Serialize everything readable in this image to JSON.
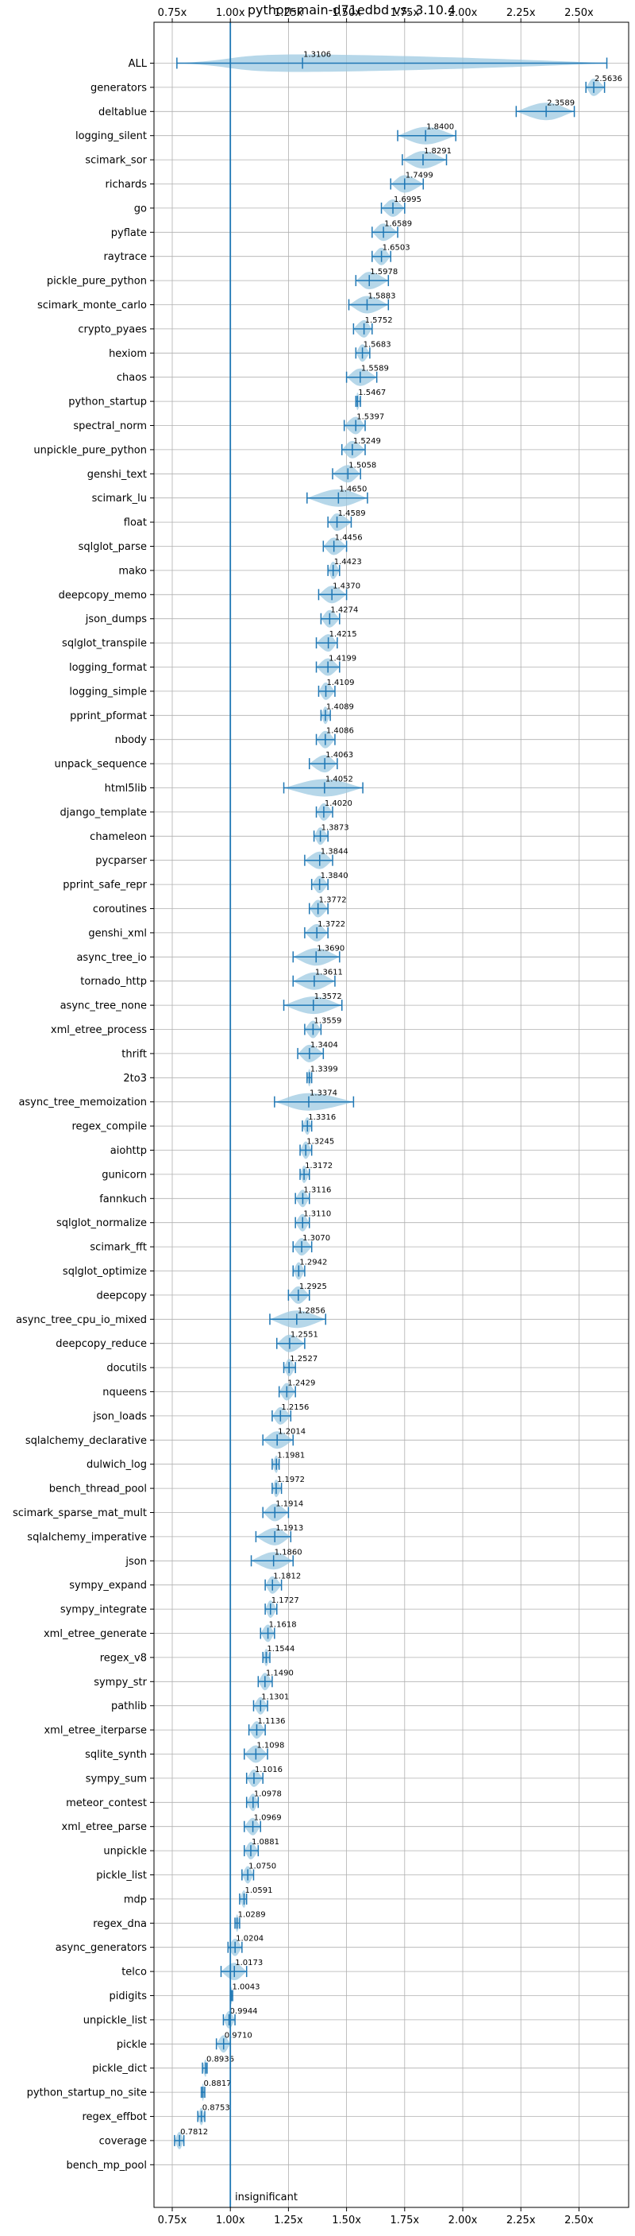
{
  "chart_data": {
    "type": "violin",
    "title": "python-main-d71edbd vs. 3.10.4",
    "xlim": [
      0.72,
      2.65
    ],
    "xticks": [
      "0.75x",
      "1.00x",
      "1.25x",
      "1.50x",
      "1.75x",
      "2.00x",
      "2.25x",
      "2.50x"
    ],
    "xtick_values": [
      0.75,
      1.0,
      1.25,
      1.5,
      1.75,
      2.0,
      2.25,
      2.5
    ],
    "grid": true,
    "reference_line": 1.0,
    "reference_color": "#1f77b4",
    "violin_color": "#9ecae1",
    "line_color": "#1f77b4",
    "annotation": "insignificant",
    "benchmarks": [
      {
        "name": "ALL",
        "value": 1.3106,
        "label": "1.3106",
        "min": 0.77,
        "max": 2.62
      },
      {
        "name": "generators",
        "value": 2.5636,
        "label": "2.5636",
        "min": 2.53,
        "max": 2.61
      },
      {
        "name": "deltablue",
        "value": 2.3589,
        "label": "2.3589",
        "min": 2.23,
        "max": 2.48
      },
      {
        "name": "logging_silent",
        "value": 1.84,
        "label": "1.8400",
        "min": 1.72,
        "max": 1.97
      },
      {
        "name": "scimark_sor",
        "value": 1.8291,
        "label": "1.8291",
        "min": 1.74,
        "max": 1.93
      },
      {
        "name": "richards",
        "value": 1.7499,
        "label": "1.7499",
        "min": 1.69,
        "max": 1.83
      },
      {
        "name": "go",
        "value": 1.6995,
        "label": "1.6995",
        "min": 1.65,
        "max": 1.75
      },
      {
        "name": "pyflate",
        "value": 1.6589,
        "label": "1.6589",
        "min": 1.61,
        "max": 1.72
      },
      {
        "name": "raytrace",
        "value": 1.6503,
        "label": "1.6503",
        "min": 1.61,
        "max": 1.69
      },
      {
        "name": "pickle_pure_python",
        "value": 1.5978,
        "label": "1.5978",
        "min": 1.54,
        "max": 1.68
      },
      {
        "name": "scimark_monte_carlo",
        "value": 1.5883,
        "label": "1.5883",
        "min": 1.51,
        "max": 1.68
      },
      {
        "name": "crypto_pyaes",
        "value": 1.5752,
        "label": "1.5752",
        "min": 1.53,
        "max": 1.61
      },
      {
        "name": "hexiom",
        "value": 1.5683,
        "label": "1.5683",
        "min": 1.54,
        "max": 1.6
      },
      {
        "name": "chaos",
        "value": 1.5589,
        "label": "1.5589",
        "min": 1.5,
        "max": 1.63
      },
      {
        "name": "python_startup",
        "value": 1.5467,
        "label": "1.5467",
        "min": 1.54,
        "max": 1.56
      },
      {
        "name": "spectral_norm",
        "value": 1.5397,
        "label": "1.5397",
        "min": 1.49,
        "max": 1.58
      },
      {
        "name": "unpickle_pure_python",
        "value": 1.5249,
        "label": "1.5249",
        "min": 1.48,
        "max": 1.58
      },
      {
        "name": "genshi_text",
        "value": 1.5058,
        "label": "1.5058",
        "min": 1.44,
        "max": 1.56
      },
      {
        "name": "scimark_lu",
        "value": 1.465,
        "label": "1.4650",
        "min": 1.33,
        "max": 1.59
      },
      {
        "name": "float",
        "value": 1.4589,
        "label": "1.4589",
        "min": 1.42,
        "max": 1.52
      },
      {
        "name": "sqlglot_parse",
        "value": 1.4456,
        "label": "1.4456",
        "min": 1.4,
        "max": 1.5
      },
      {
        "name": "mako",
        "value": 1.4423,
        "label": "1.4423",
        "min": 1.42,
        "max": 1.47
      },
      {
        "name": "deepcopy_memo",
        "value": 1.437,
        "label": "1.4370",
        "min": 1.38,
        "max": 1.5
      },
      {
        "name": "json_dumps",
        "value": 1.4274,
        "label": "1.4274",
        "min": 1.39,
        "max": 1.47
      },
      {
        "name": "sqlglot_transpile",
        "value": 1.4215,
        "label": "1.4215",
        "min": 1.37,
        "max": 1.46
      },
      {
        "name": "logging_format",
        "value": 1.4199,
        "label": "1.4199",
        "min": 1.37,
        "max": 1.47
      },
      {
        "name": "logging_simple",
        "value": 1.4109,
        "label": "1.4109",
        "min": 1.38,
        "max": 1.45
      },
      {
        "name": "pprint_pformat",
        "value": 1.4089,
        "label": "1.4089",
        "min": 1.39,
        "max": 1.43
      },
      {
        "name": "nbody",
        "value": 1.4086,
        "label": "1.4086",
        "min": 1.37,
        "max": 1.45
      },
      {
        "name": "unpack_sequence",
        "value": 1.4063,
        "label": "1.4063",
        "min": 1.34,
        "max": 1.46
      },
      {
        "name": "html5lib",
        "value": 1.4052,
        "label": "1.4052",
        "min": 1.23,
        "max": 1.57
      },
      {
        "name": "django_template",
        "value": 1.402,
        "label": "1.4020",
        "min": 1.37,
        "max": 1.44
      },
      {
        "name": "chameleon",
        "value": 1.3873,
        "label": "1.3873",
        "min": 1.36,
        "max": 1.42
      },
      {
        "name": "pycparser",
        "value": 1.3844,
        "label": "1.3844",
        "min": 1.32,
        "max": 1.44
      },
      {
        "name": "pprint_safe_repr",
        "value": 1.384,
        "label": "1.3840",
        "min": 1.35,
        "max": 1.42
      },
      {
        "name": "coroutines",
        "value": 1.3772,
        "label": "1.3772",
        "min": 1.34,
        "max": 1.42
      },
      {
        "name": "genshi_xml",
        "value": 1.3722,
        "label": "1.3722",
        "min": 1.32,
        "max": 1.42
      },
      {
        "name": "async_tree_io",
        "value": 1.369,
        "label": "1.3690",
        "min": 1.27,
        "max": 1.47
      },
      {
        "name": "tornado_http",
        "value": 1.3611,
        "label": "1.3611",
        "min": 1.27,
        "max": 1.45
      },
      {
        "name": "async_tree_none",
        "value": 1.3572,
        "label": "1.3572",
        "min": 1.23,
        "max": 1.48
      },
      {
        "name": "xml_etree_process",
        "value": 1.3559,
        "label": "1.3559",
        "min": 1.32,
        "max": 1.39
      },
      {
        "name": "thrift",
        "value": 1.3404,
        "label": "1.3404",
        "min": 1.29,
        "max": 1.4
      },
      {
        "name": "2to3",
        "value": 1.3399,
        "label": "1.3399",
        "min": 1.33,
        "max": 1.35
      },
      {
        "name": "async_tree_memoization",
        "value": 1.3374,
        "label": "1.3374",
        "min": 1.19,
        "max": 1.53
      },
      {
        "name": "regex_compile",
        "value": 1.3316,
        "label": "1.3316",
        "min": 1.31,
        "max": 1.35
      },
      {
        "name": "aiohttp",
        "value": 1.3245,
        "label": "1.3245",
        "min": 1.3,
        "max": 1.35
      },
      {
        "name": "gunicorn",
        "value": 1.3172,
        "label": "1.3172",
        "min": 1.3,
        "max": 1.34
      },
      {
        "name": "fannkuch",
        "value": 1.3116,
        "label": "1.3116",
        "min": 1.28,
        "max": 1.34
      },
      {
        "name": "sqlglot_normalize",
        "value": 1.311,
        "label": "1.3110",
        "min": 1.28,
        "max": 1.34
      },
      {
        "name": "scimark_fft",
        "value": 1.307,
        "label": "1.3070",
        "min": 1.27,
        "max": 1.35
      },
      {
        "name": "sqlglot_optimize",
        "value": 1.2942,
        "label": "1.2942",
        "min": 1.27,
        "max": 1.32
      },
      {
        "name": "deepcopy",
        "value": 1.2925,
        "label": "1.2925",
        "min": 1.25,
        "max": 1.34
      },
      {
        "name": "async_tree_cpu_io_mixed",
        "value": 1.2856,
        "label": "1.2856",
        "min": 1.17,
        "max": 1.41
      },
      {
        "name": "deepcopy_reduce",
        "value": 1.2551,
        "label": "1.2551",
        "min": 1.2,
        "max": 1.32
      },
      {
        "name": "docutils",
        "value": 1.2527,
        "label": "1.2527",
        "min": 1.23,
        "max": 1.28
      },
      {
        "name": "nqueens",
        "value": 1.2429,
        "label": "1.2429",
        "min": 1.21,
        "max": 1.28
      },
      {
        "name": "json_loads",
        "value": 1.2156,
        "label": "1.2156",
        "min": 1.18,
        "max": 1.26
      },
      {
        "name": "sqlalchemy_declarative",
        "value": 1.2014,
        "label": "1.2014",
        "min": 1.14,
        "max": 1.27
      },
      {
        "name": "dulwich_log",
        "value": 1.1981,
        "label": "1.1981",
        "min": 1.18,
        "max": 1.21
      },
      {
        "name": "bench_thread_pool",
        "value": 1.1972,
        "label": "1.1972",
        "min": 1.18,
        "max": 1.22
      },
      {
        "name": "scimark_sparse_mat_mult",
        "value": 1.1914,
        "label": "1.1914",
        "min": 1.14,
        "max": 1.25
      },
      {
        "name": "sqlalchemy_imperative",
        "value": 1.1913,
        "label": "1.1913",
        "min": 1.11,
        "max": 1.26
      },
      {
        "name": "json",
        "value": 1.186,
        "label": "1.1860",
        "min": 1.09,
        "max": 1.27
      },
      {
        "name": "sympy_expand",
        "value": 1.1812,
        "label": "1.1812",
        "min": 1.15,
        "max": 1.22
      },
      {
        "name": "sympy_integrate",
        "value": 1.1727,
        "label": "1.1727",
        "min": 1.15,
        "max": 1.2
      },
      {
        "name": "xml_etree_generate",
        "value": 1.1618,
        "label": "1.1618",
        "min": 1.13,
        "max": 1.19
      },
      {
        "name": "regex_v8",
        "value": 1.1544,
        "label": "1.1544",
        "min": 1.14,
        "max": 1.17
      },
      {
        "name": "sympy_str",
        "value": 1.149,
        "label": "1.1490",
        "min": 1.12,
        "max": 1.18
      },
      {
        "name": "pathlib",
        "value": 1.1301,
        "label": "1.1301",
        "min": 1.1,
        "max": 1.16
      },
      {
        "name": "xml_etree_iterparse",
        "value": 1.1136,
        "label": "1.1136",
        "min": 1.08,
        "max": 1.15
      },
      {
        "name": "sqlite_synth",
        "value": 1.1098,
        "label": "1.1098",
        "min": 1.06,
        "max": 1.16
      },
      {
        "name": "sympy_sum",
        "value": 1.1016,
        "label": "1.1016",
        "min": 1.07,
        "max": 1.14
      },
      {
        "name": "meteor_contest",
        "value": 1.0978,
        "label": "1.0978",
        "min": 1.07,
        "max": 1.12
      },
      {
        "name": "xml_etree_parse",
        "value": 1.0969,
        "label": "1.0969",
        "min": 1.06,
        "max": 1.13
      },
      {
        "name": "unpickle",
        "value": 1.0881,
        "label": "1.0881",
        "min": 1.06,
        "max": 1.12
      },
      {
        "name": "pickle_list",
        "value": 1.075,
        "label": "1.0750",
        "min": 1.05,
        "max": 1.1
      },
      {
        "name": "mdp",
        "value": 1.0591,
        "label": "1.0591",
        "min": 1.04,
        "max": 1.07
      },
      {
        "name": "regex_dna",
        "value": 1.0289,
        "label": "1.0289",
        "min": 1.02,
        "max": 1.04
      },
      {
        "name": "async_generators",
        "value": 1.0204,
        "label": "1.0204",
        "min": 0.99,
        "max": 1.05
      },
      {
        "name": "telco",
        "value": 1.0173,
        "label": "1.0173",
        "min": 0.96,
        "max": 1.07
      },
      {
        "name": "pidigits",
        "value": 1.0043,
        "label": "1.0043",
        "min": 1.0,
        "max": 1.01
      },
      {
        "name": "unpickle_list",
        "value": 0.9944,
        "label": "0.9944",
        "min": 0.97,
        "max": 1.02
      },
      {
        "name": "pickle",
        "value": 0.971,
        "label": "0.9710",
        "min": 0.94,
        "max": 1.0
      },
      {
        "name": "pickle_dict",
        "value": 0.8936,
        "label": "0.8936",
        "min": 0.88,
        "max": 0.9
      },
      {
        "name": "python_startup_no_site",
        "value": 0.8817,
        "label": "0.8817",
        "min": 0.875,
        "max": 0.89
      },
      {
        "name": "regex_effbot",
        "value": 0.8753,
        "label": "0.8753",
        "min": 0.86,
        "max": 0.89
      },
      {
        "name": "coverage",
        "value": 0.7812,
        "label": "0.7812",
        "min": 0.76,
        "max": 0.8
      },
      {
        "name": "bench_mp_pool",
        "value": null,
        "label": "",
        "min": null,
        "max": null
      }
    ]
  }
}
